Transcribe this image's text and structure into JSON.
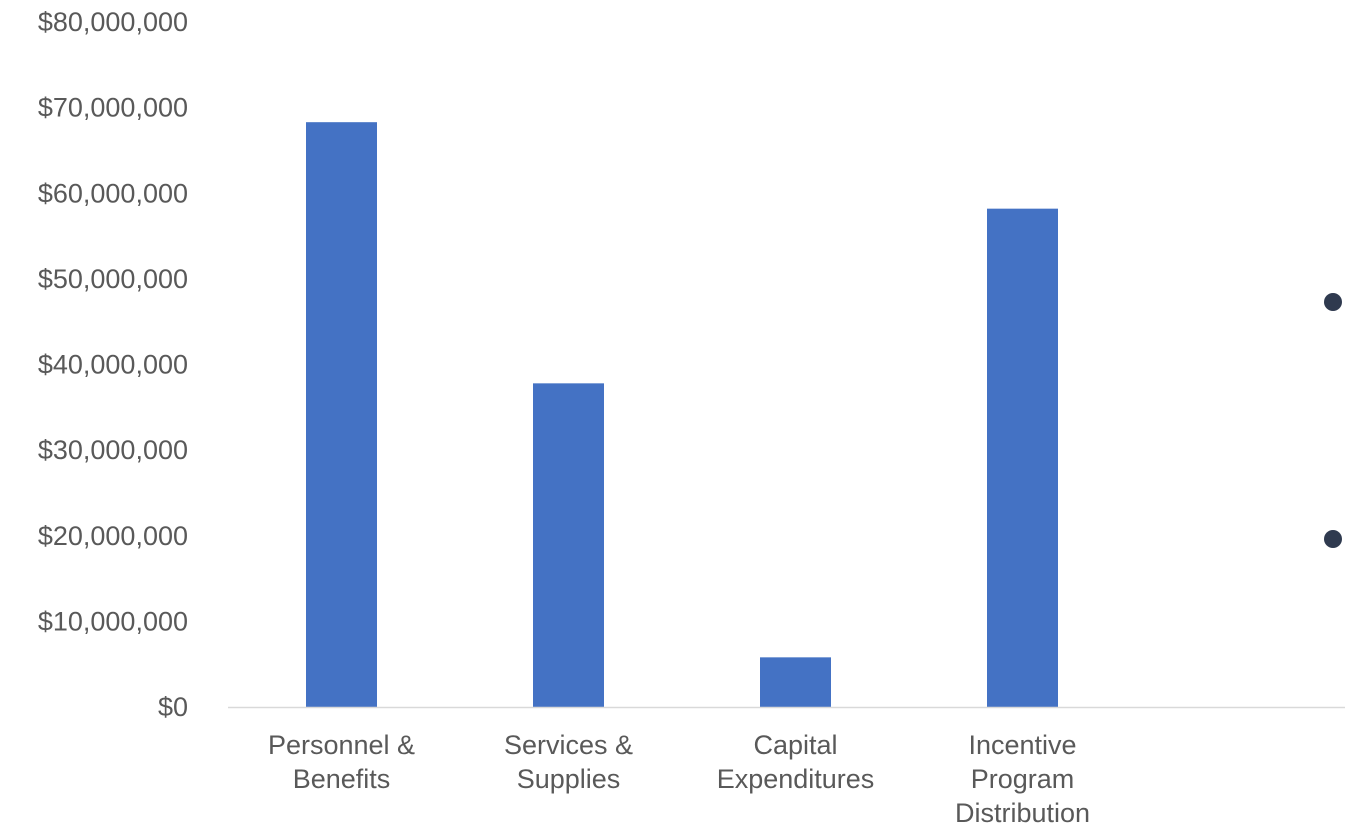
{
  "chart_data": {
    "type": "bar",
    "title": "",
    "xlabel": "",
    "ylabel": "",
    "categories": [
      [
        "Personnel &",
        "Benefits"
      ],
      [
        "Services &",
        "Supplies"
      ],
      [
        "Capital",
        "Expenditures"
      ],
      [
        "Incentive",
        "Program",
        "Distribution"
      ]
    ],
    "values": [
      68300000,
      37800000,
      5800000,
      58200000
    ],
    "ylim": [
      0,
      80000000
    ],
    "yticks": [
      0,
      10000000,
      20000000,
      30000000,
      40000000,
      50000000,
      60000000,
      70000000,
      80000000
    ],
    "ytick_labels": [
      "$0",
      "$10,000,000",
      "$20,000,000",
      "$30,000,000",
      "$40,000,000",
      "$50,000,000",
      "$60,000,000",
      "$70,000,000",
      "$80,000,000"
    ],
    "grid": false,
    "bar_color": "#4472C4",
    "axis_color": "#D9D9D9",
    "text_color": "#595959",
    "bullet_color": "#2F3A4F",
    "bullet_count": 2
  }
}
